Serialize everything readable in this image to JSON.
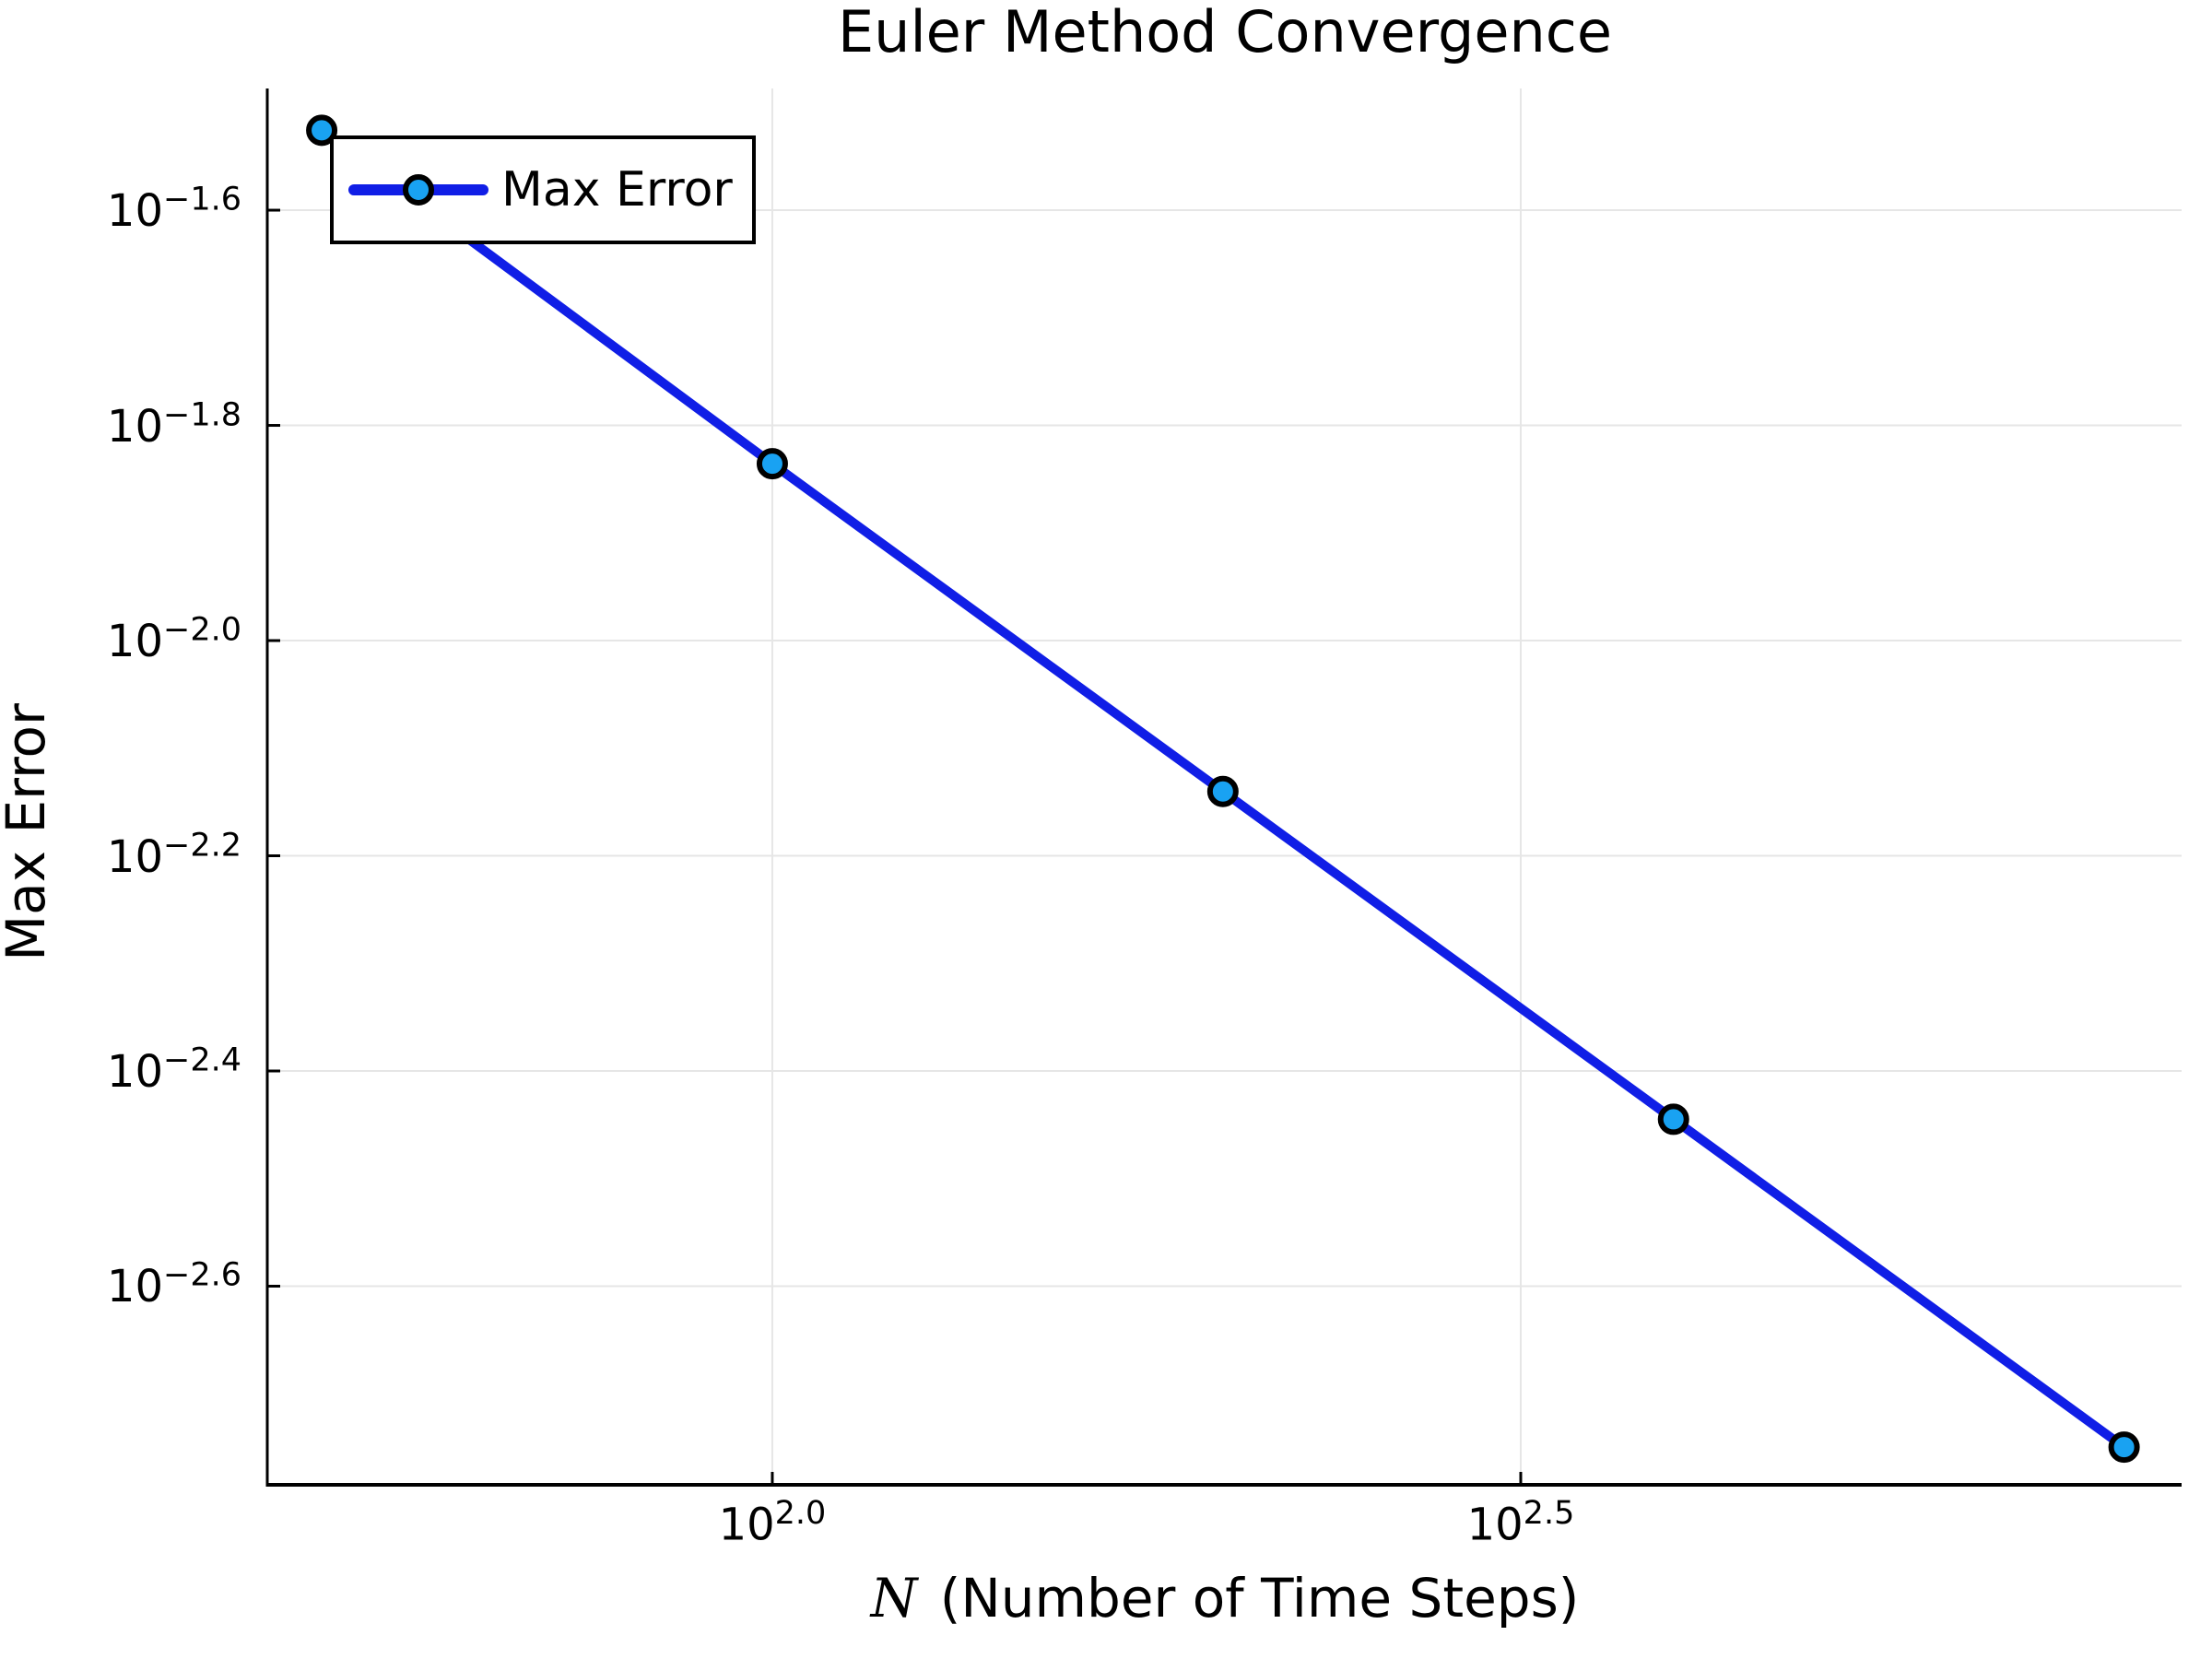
{
  "text": {
    "xlabel_var": "N",
    "xlabel_rest": " (Number of Time Steps)",
    "legend_label": "Max Error",
    "tick_base": "10"
  },
  "chart_data": {
    "type": "line",
    "title": "Euler Method Convergence",
    "xlabel": "N (Number of Time Steps)",
    "ylabel": "Max Error",
    "x_scale": "log10",
    "y_scale": "log10",
    "grid": true,
    "legend": {
      "position": "top-left",
      "entries": [
        "Max Error"
      ]
    },
    "series": [
      {
        "name": "Max Error",
        "x": [
          50,
          100,
          200,
          400,
          800
        ],
        "y": [
          0.0298,
          0.0146,
          0.00724,
          0.00359,
          0.00178
        ]
      }
    ],
    "x_ticks": [
      {
        "log10": 2.0,
        "exp": "2.0"
      },
      {
        "log10": 2.5,
        "exp": "2.5"
      }
    ],
    "y_ticks": [
      {
        "log10": -1.6,
        "exp": "−1.6"
      },
      {
        "log10": -1.8,
        "exp": "−1.8"
      },
      {
        "log10": -2.0,
        "exp": "−2.0"
      },
      {
        "log10": -2.2,
        "exp": "−2.2"
      },
      {
        "log10": -2.4,
        "exp": "−2.4"
      },
      {
        "log10": -2.6,
        "exp": "−2.6"
      }
    ],
    "xlim_log10": [
      1.6626,
      2.9415
    ],
    "ylim_log10": [
      -2.7846,
      -1.4869
    ],
    "colors": {
      "line": "#101ee6",
      "marker_fill": "#19a2f2",
      "marker_stroke": "#000000",
      "grid": "#e6e6e6",
      "axis": "#000000"
    }
  }
}
